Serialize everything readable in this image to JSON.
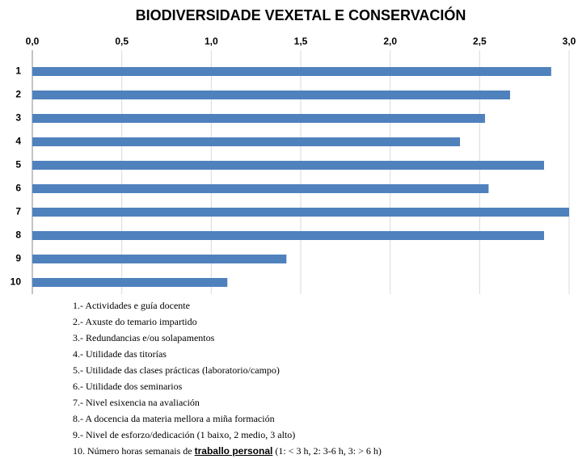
{
  "chart_data": {
    "type": "bar",
    "orientation": "horizontal",
    "title": "BIODIVERSIDADE VEXETAL E CONSERVACIÓN",
    "categories": [
      "1",
      "2",
      "3",
      "4",
      "5",
      "6",
      "7",
      "8",
      "9",
      "10"
    ],
    "values": [
      2.9,
      2.67,
      2.53,
      2.39,
      2.86,
      2.55,
      3.0,
      2.86,
      1.42,
      1.09
    ],
    "color": "#4f81bd",
    "xlim": [
      0,
      3
    ],
    "xticks": [
      {
        "value": 0,
        "label": "0,0"
      },
      {
        "value": 0.5,
        "label": "0,5"
      },
      {
        "value": 1,
        "label": "1,0"
      },
      {
        "value": 1.5,
        "label": "1,5"
      },
      {
        "value": 2,
        "label": "2,0"
      },
      {
        "value": 2.5,
        "label": "2,5"
      },
      {
        "value": 3,
        "label": "3,0"
      }
    ],
    "grid": true,
    "notes": [
      "1.- Actividades e guía docente",
      "2.- Axuste do temario impartido",
      "3.- Redundancias e/ou solapamentos",
      "4.- Utilidade das titorías",
      "5.- Utilidade das clases prácticas (laboratorio/campo)",
      "6.- Utilidade dos seminarios",
      "7.- Nivel esixencia na avaliación",
      "8.- A docencia da materia mellora a miña formación",
      "9.- Nivel de esforzo/dedicación (1 baixo, 2 medio, 3 alto)"
    ],
    "last_note": {
      "before": "10. Número horas semanais de ",
      "bold": "traballo personal",
      "after": " (1: < 3 h, 2: 3-6 h, 3: > 6 h)"
    }
  }
}
